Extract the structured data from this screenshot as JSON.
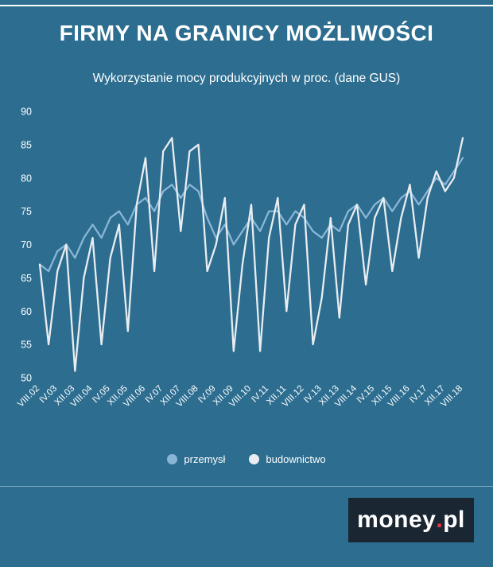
{
  "colors": {
    "background": "#2c6d90",
    "text": "#ffffff",
    "przemysl_line": "#8ab6d6",
    "budownictwo_line": "#e9edf0",
    "logo_bg": "#1b2633",
    "logo_dot": "#e8374a"
  },
  "chart_data": {
    "type": "line",
    "title": "FIRMY NA GRANICY MOŻLIWOŚCI",
    "subtitle": "Wykorzystanie mocy produkcyjnych w proc. (dane GUS)",
    "ylabel": "",
    "xlabel": "",
    "ylim": [
      50,
      90
    ],
    "yticks": [
      50,
      55,
      60,
      65,
      70,
      75,
      80,
      85,
      90
    ],
    "grid": false,
    "legend_position": "bottom",
    "n_points": 49,
    "x_tick_step": 2,
    "x_tick_labels": [
      "VIII.02",
      "IV.03",
      "XII.03",
      "VIII.04",
      "IV.05",
      "XII.05",
      "VIII.06",
      "IV.07",
      "XII.07",
      "VIII.08",
      "IV.09",
      "XII.09",
      "VIII.10",
      "IV.11",
      "XII.11",
      "VIII.12",
      "IV.13",
      "XII.13",
      "VIII.14",
      "IV.15",
      "XII.15",
      "VIII.16",
      "IV.17",
      "XII.17",
      "VIII.18"
    ],
    "series": [
      {
        "name": "przemysł",
        "color": "#8ab6d6",
        "values": [
          67,
          66,
          69,
          70,
          68,
          71,
          73,
          71,
          74,
          75,
          73,
          76,
          77,
          75,
          78,
          79,
          77,
          79,
          78,
          74,
          71,
          73,
          70,
          72,
          74,
          72,
          75,
          75,
          73,
          75,
          74,
          72,
          71,
          73,
          72,
          75,
          76,
          74,
          76,
          77,
          75,
          77,
          78,
          76,
          78,
          80,
          79,
          81,
          83
        ]
      },
      {
        "name": "budownictwo",
        "color": "#e9edf0",
        "values": [
          67,
          55,
          66,
          70,
          51,
          65,
          71,
          55,
          68,
          73,
          57,
          76,
          83,
          66,
          84,
          86,
          72,
          84,
          85,
          66,
          70,
          77,
          54,
          67,
          76,
          54,
          71,
          77,
          60,
          73,
          76,
          55,
          62,
          74,
          59,
          73,
          76,
          64,
          74,
          77,
          66,
          74,
          79,
          68,
          77,
          81,
          78,
          80,
          86
        ]
      }
    ]
  },
  "legend": {
    "items": [
      {
        "label": "przemysł"
      },
      {
        "label": "budownictwo"
      }
    ]
  },
  "logo": {
    "money": "money",
    "dot": ".",
    "pl": "pl"
  }
}
